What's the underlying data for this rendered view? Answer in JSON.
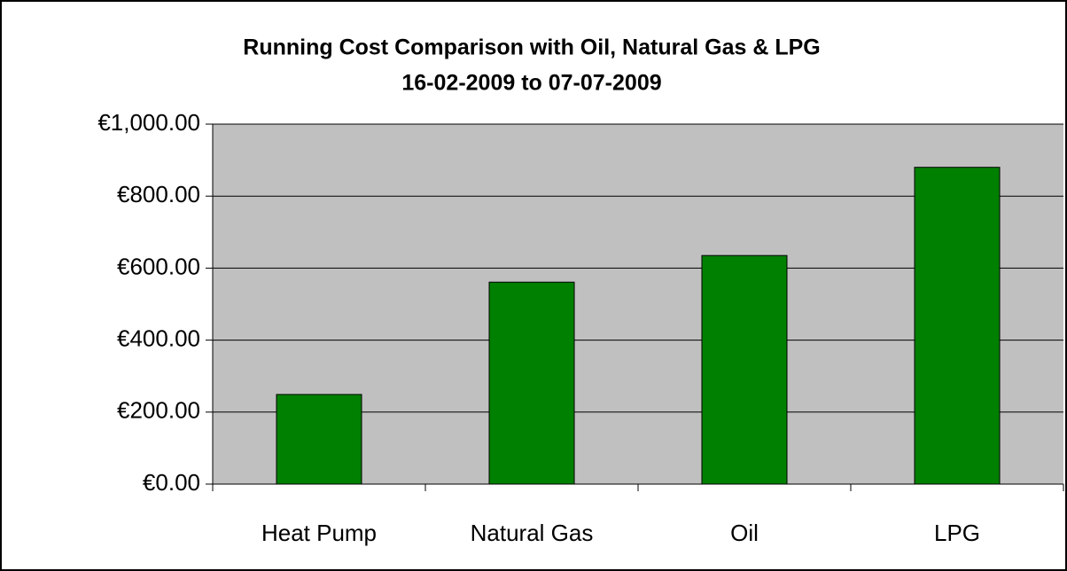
{
  "chart_data": {
    "type": "bar",
    "title": "Running Cost Comparison with Oil, Natural Gas & LPG",
    "subtitle": "16-02-2009 to 07-07-2009",
    "categories": [
      "Heat Pump",
      "Natural Gas",
      "Oil",
      "LPG"
    ],
    "values": [
      249,
      561,
      635,
      880
    ],
    "color": "#008000",
    "ylim": [
      0,
      1000
    ],
    "yticks": [
      {
        "value": 0,
        "label": "€0.00"
      },
      {
        "value": 200,
        "label": "€200.00"
      },
      {
        "value": 400,
        "label": "€400.00"
      },
      {
        "value": 600,
        "label": "€600.00"
      },
      {
        "value": 800,
        "label": "€800.00"
      },
      {
        "value": 1000,
        "label": "€1,000.00"
      }
    ],
    "grid": true
  }
}
